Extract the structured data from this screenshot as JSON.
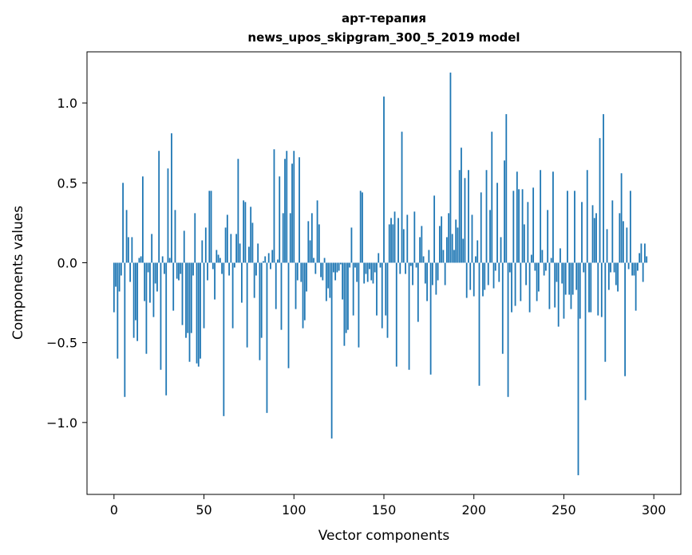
{
  "chart_data": {
    "type": "bar",
    "title": "арт-терапия",
    "subtitle": "news_upos_skipgram_300_5_2019 model",
    "xlabel": "Vector components",
    "ylabel": "Components values",
    "xlim": [
      -15,
      315
    ],
    "ylim": [
      -1.45,
      1.32
    ],
    "xticks": [
      0,
      50,
      100,
      150,
      200,
      250,
      300
    ],
    "yticks": [
      -1.0,
      -0.5,
      0.0,
      0.5,
      1.0
    ],
    "ytick_labels": [
      "−1.0",
      "−0.5",
      "0.0",
      "0.5",
      "1.0"
    ],
    "grid": false,
    "bar_color": "#1f77b4",
    "values": [
      -0.31,
      -0.15,
      -0.6,
      -0.18,
      -0.08,
      0.5,
      -0.84,
      0.33,
      0.16,
      -0.12,
      0.16,
      -0.47,
      -0.36,
      -0.49,
      0.03,
      0.04,
      0.54,
      -0.24,
      -0.57,
      -0.06,
      -0.25,
      0.18,
      -0.34,
      -0.13,
      -0.18,
      0.7,
      -0.67,
      0.04,
      -0.07,
      -0.83,
      0.59,
      0.03,
      0.81,
      -0.3,
      0.33,
      -0.1,
      -0.11,
      -0.07,
      -0.39,
      0.2,
      -0.47,
      -0.44,
      -0.62,
      -0.44,
      -0.08,
      0.31,
      -0.63,
      -0.65,
      -0.6,
      0.14,
      -0.41,
      0.22,
      -0.11,
      0.45,
      0.45,
      -0.04,
      -0.23,
      0.08,
      0.05,
      0.03,
      -0.07,
      -0.96,
      0.22,
      0.3,
      -0.08,
      0.18,
      -0.41,
      -0.03,
      0.18,
      0.65,
      0.12,
      -0.25,
      0.39,
      0.38,
      -0.53,
      0.1,
      0.35,
      0.25,
      -0.22,
      -0.08,
      0.12,
      -0.61,
      -0.47,
      0.01,
      0.04,
      -0.94,
      0.06,
      -0.04,
      0.08,
      0.71,
      -0.29,
      0.02,
      0.54,
      -0.42,
      0.31,
      0.65,
      0.7,
      -0.66,
      0.31,
      0.62,
      0.7,
      -0.29,
      -0.11,
      0.66,
      -0.12,
      -0.41,
      -0.36,
      -0.18,
      0.26,
      0.14,
      0.31,
      0.03,
      -0.07,
      0.39,
      0.24,
      -0.09,
      -0.11,
      0.03,
      -0.24,
      -0.16,
      -0.22,
      -1.1,
      -0.06,
      -0.11,
      -0.06,
      -0.05,
      -0.01,
      -0.23,
      -0.52,
      -0.44,
      -0.42,
      -0.03,
      0.22,
      -0.33,
      -0.03,
      -0.12,
      -0.53,
      0.45,
      0.44,
      -0.13,
      -0.07,
      -0.12,
      -0.04,
      -0.11,
      -0.13,
      -0.06,
      -0.33,
      0.06,
      -0.03,
      -0.41,
      1.04,
      -0.33,
      -0.47,
      0.24,
      0.28,
      0.24,
      0.32,
      -0.65,
      0.28,
      -0.07,
      0.82,
      0.21,
      -0.07,
      0.3,
      -0.67,
      -0.02,
      -0.14,
      0.32,
      -0.03,
      -0.37,
      0.16,
      0.23,
      0.04,
      -0.13,
      -0.24,
      0.08,
      -0.7,
      -0.14,
      0.42,
      -0.2,
      -0.11,
      0.23,
      0.29,
      0.08,
      -0.14,
      0.16,
      0.31,
      1.19,
      0.18,
      0.08,
      0.27,
      0.22,
      0.58,
      0.72,
      0.15,
      0.53,
      -0.22,
      0.58,
      -0.17,
      0.3,
      -0.21,
      0.04,
      0.14,
      -0.77,
      0.44,
      -0.21,
      -0.17,
      0.58,
      -0.14,
      0.33,
      0.82,
      -0.16,
      -0.05,
      0.5,
      -0.12,
      0.16,
      -0.57,
      0.64,
      0.93,
      -0.84,
      -0.06,
      -0.31,
      0.45,
      -0.27,
      0.57,
      0.46,
      -0.24,
      0.46,
      0.24,
      -0.14,
      0.38,
      -0.31,
      0.05,
      0.47,
      -0.05,
      -0.24,
      -0.18,
      0.58,
      0.08,
      -0.08,
      -0.05,
      0.33,
      -0.29,
      0.03,
      0.57,
      -0.28,
      -0.12,
      -0.4,
      0.09,
      -0.13,
      -0.35,
      -0.2,
      0.45,
      -0.2,
      -0.29,
      -0.2,
      0.45,
      -0.17,
      -1.33,
      -0.35,
      0.38,
      -0.06,
      -0.86,
      0.58,
      -0.31,
      -0.31,
      0.36,
      0.28,
      0.31,
      -0.33,
      0.78,
      -0.34,
      0.93,
      -0.62,
      0.21,
      -0.17,
      -0.06,
      0.39,
      -0.06,
      -0.14,
      -0.18,
      0.31,
      0.56,
      0.26,
      -0.71,
      0.22,
      -0.04,
      0.45,
      -0.08,
      -0.08,
      -0.3,
      -0.05,
      0.06,
      0.12,
      -0.12,
      0.12,
      0.04
    ]
  }
}
